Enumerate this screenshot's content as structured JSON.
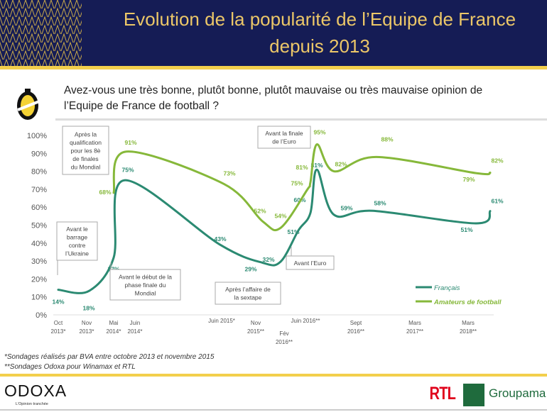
{
  "header": {
    "title_line1": "Evolution de la popularité de l’Equipe de France",
    "title_line2": "depuis 2013"
  },
  "question": {
    "line1": "Avez-vous une très bonne, plutôt bonne, plutôt mauvaise ou très mauvaise opinion de",
    "line2": "l’Equipe de France de football ?"
  },
  "chart_data": {
    "type": "line",
    "y_ticks": [
      "0%",
      "10%",
      "20%",
      "30%",
      "40%",
      "50%",
      "60%",
      "70%",
      "80%",
      "90%",
      "100%"
    ],
    "ylim": [
      0,
      100
    ],
    "x_ticks": [
      [
        "Oct",
        "2013*"
      ],
      [
        "Nov",
        "2013*"
      ],
      [
        "Mai",
        "2014*"
      ],
      [
        "Juin",
        "2014*"
      ],
      [
        "Juin 2015*",
        ""
      ],
      [
        "Nov",
        "2015**"
      ],
      [
        "Fév",
        "2016**"
      ],
      [
        "Juin 2016**",
        ""
      ],
      [
        "Sept",
        "2016**"
      ],
      [
        "Mars",
        "2017**"
      ],
      [
        "Mars",
        "2018**"
      ]
    ],
    "series": [
      {
        "name": "Français",
        "color": "#2b8a72",
        "values": [
          14,
          18,
          37,
          75,
          43,
          29,
          32,
          51,
          60,
          81,
          59,
          58,
          51,
          61
        ]
      },
      {
        "name": "Amateurs de football",
        "color": "#86b83a",
        "values": [
          68,
          91,
          73,
          52,
          54,
          75,
          81,
          95,
          82,
          88,
          79,
          82
        ]
      }
    ],
    "annotations": [
      [
        "Après la",
        "qualification",
        "pour les 8è",
        "de finales",
        "du Mondial"
      ],
      [
        "Avant le",
        "barrage",
        "contre",
        "l’Ukraine"
      ],
      [
        "Avant le début de la",
        "phase finale du",
        "Mondial"
      ],
      [
        "Après l’affaire de",
        "la sextape"
      ],
      [
        "Avant la finale",
        "de l’Euro"
      ],
      [
        "Avant l’Euro"
      ]
    ],
    "legend_position": "bottom-right"
  },
  "footer": {
    "note1": "*Sondages réalisés par BVA entre octobre 2013 et novembre 2015",
    "note2": "**Sondages Odoxa pour Winamax et RTL",
    "odoxa": "ODOXA",
    "tagline": "L’Opinion tranchée",
    "rtl": "RTL",
    "groupama": "Groupama"
  }
}
